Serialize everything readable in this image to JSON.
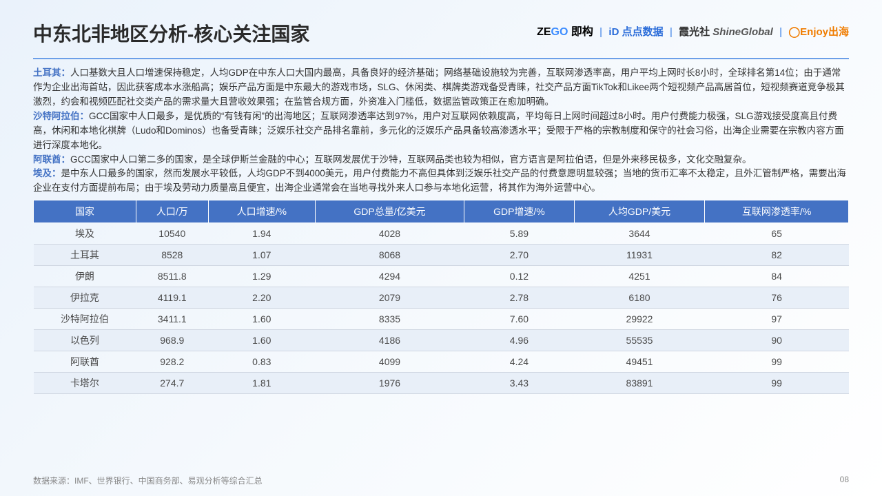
{
  "title": "中东北非地区分析-核心关注国家",
  "logos": {
    "zego1": "ZE",
    "zego2": "GO",
    "zego3": " 即构",
    "dd": "iD 点点数据",
    "xgs": "霞光社 ",
    "shine": "ShineGlobal",
    "enjoy": "Enjoy出海"
  },
  "paragraphs": [
    {
      "label": "土耳其：",
      "text": "人口基数大且人口增速保持稳定，人均GDP在中东人口大国内最高，具备良好的经济基础；网络基础设施较为完善，互联网渗透率高，用户平均上网时长8小时，全球排名第14位；由于通常作为企业出海首站，因此获客成本水涨船高；娱乐产品方面是中东最大的游戏市场，SLG、休闲类、棋牌类游戏备受青睐，社交产品方面TikTok和Likee两个短视频产品高居首位，短视频赛道竞争极其激烈，约会和视频匹配社交类产品的需求量大且营收效果强；在监管合规方面，外资准入门槛低，数据监管政策正在愈加明确。"
    },
    {
      "label": "沙特阿拉伯：",
      "text": "GCC国家中人口最多，是优质的“有钱有闲”的出海地区；互联网渗透率达到97%，用户对互联网依赖度高，平均每日上网时间超过8小时。用户付费能力极强，SLG游戏接受度高且付费高，休闲和本地化棋牌（Ludo和Dominos）也备受青睐；泛娱乐社交产品排名靠前，多元化的泛娱乐产品具备较高渗透水平；受限于严格的宗教制度和保守的社会习俗，出海企业需要在宗教内容方面进行深度本地化。"
    },
    {
      "label": "阿联酋：",
      "text": "GCC国家中人口第二多的国家，是全球伊斯兰金融的中心；互联网发展优于沙特，互联网品类也较为相似，官方语言是阿拉伯语，但是外来移民极多，文化交融复杂。"
    },
    {
      "label": "埃及：",
      "text": "是中东人口最多的国家，然而发展水平较低，人均GDP不到4000美元，用户付费能力不高但具体到泛娱乐社交产品的付费意愿明显较强；当地的货币汇率不太稳定，且外汇管制严格，需要出海企业在支付方面提前布局；由于埃及劳动力质量高且便宜，出海企业通常会在当地寻找外来人口参与本地化运营，将其作为海外运营中心。"
    }
  ],
  "table": {
    "columns": [
      "国家",
      "人口/万",
      "人口增速/%",
      "GDP总量/亿美元",
      "GDP增速/%",
      "人均GDP/美元",
      "互联网渗透率/%"
    ],
    "rows": [
      [
        "埃及",
        "10540",
        "1.94",
        "4028",
        "5.89",
        "3644",
        "65"
      ],
      [
        "土耳其",
        "8528",
        "1.07",
        "8068",
        "2.70",
        "11931",
        "82"
      ],
      [
        "伊朗",
        "8511.8",
        "1.29",
        "4294",
        "0.12",
        "4251",
        "84"
      ],
      [
        "伊拉克",
        "4119.1",
        "2.20",
        "2079",
        "2.78",
        "6180",
        "76"
      ],
      [
        "沙特阿拉伯",
        "3411.1",
        "1.60",
        "8335",
        "7.60",
        "29922",
        "97"
      ],
      [
        "以色列",
        "968.9",
        "1.60",
        "4186",
        "4.96",
        "55535",
        "90"
      ],
      [
        "阿联酋",
        "928.2",
        "0.83",
        "4099",
        "4.24",
        "49451",
        "99"
      ],
      [
        "卡塔尔",
        "274.7",
        "1.81",
        "1976",
        "3.43",
        "83891",
        "99"
      ]
    ],
    "header_bg": "#4472c4",
    "header_color": "#ffffff",
    "row_alt_bg": "#e8eff8",
    "border_color": "#d0d7e2"
  },
  "footer": {
    "source": "数据来源：IMF、世界银行、中国商务部、易观分析等综合汇总",
    "page": "08"
  }
}
